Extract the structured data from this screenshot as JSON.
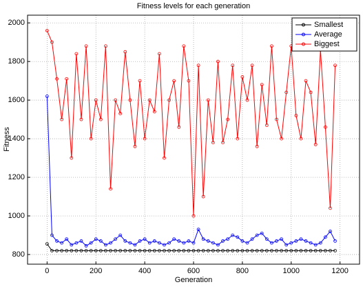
{
  "chart_data": {
    "type": "line",
    "title": "Fitness levels for each generation",
    "xlabel": "Generation",
    "ylabel": "Fitness",
    "x": [
      0,
      20,
      40,
      60,
      80,
      100,
      120,
      140,
      160,
      180,
      200,
      220,
      240,
      260,
      280,
      300,
      320,
      340,
      360,
      380,
      400,
      420,
      440,
      460,
      480,
      500,
      520,
      540,
      560,
      580,
      600,
      620,
      640,
      660,
      680,
      700,
      720,
      740,
      760,
      780,
      800,
      820,
      840,
      860,
      880,
      900,
      920,
      940,
      960,
      980,
      1000,
      1020,
      1040,
      1060,
      1080,
      1100,
      1120,
      1140,
      1160,
      1180
    ],
    "series": [
      {
        "name": "Smallest",
        "color": "#000000",
        "values": [
          855,
          820,
          820,
          820,
          820,
          820,
          820,
          820,
          820,
          820,
          820,
          820,
          820,
          820,
          820,
          820,
          820,
          820,
          820,
          820,
          820,
          820,
          820,
          820,
          820,
          820,
          820,
          820,
          820,
          820,
          820,
          820,
          820,
          820,
          820,
          820,
          820,
          820,
          820,
          820,
          820,
          820,
          820,
          820,
          820,
          820,
          820,
          820,
          820,
          820,
          820,
          820,
          820,
          820,
          820,
          820,
          820,
          820,
          820,
          820
        ]
      },
      {
        "name": "Average",
        "color": "#0000ff",
        "values": [
          1620,
          900,
          870,
          860,
          880,
          850,
          860,
          870,
          845,
          860,
          880,
          870,
          850,
          860,
          880,
          900,
          870,
          860,
          850,
          870,
          880,
          860,
          870,
          860,
          850,
          860,
          880,
          870,
          860,
          870,
          860,
          930,
          880,
          870,
          860,
          850,
          870,
          880,
          900,
          890,
          870,
          860,
          880,
          900,
          910,
          880,
          860,
          870,
          880,
          850,
          860,
          870,
          880,
          870,
          860,
          850,
          860,
          890,
          920,
          870
        ]
      },
      {
        "name": "Biggest",
        "color": "#ff0000",
        "values": [
          1960,
          1900,
          1710,
          1500,
          1710,
          1300,
          1840,
          1500,
          1880,
          1400,
          1600,
          1500,
          1880,
          1140,
          1600,
          1530,
          1850,
          1600,
          1360,
          1700,
          1400,
          1600,
          1540,
          1840,
          1300,
          1600,
          1700,
          1460,
          1880,
          1700,
          1000,
          1780,
          1100,
          1600,
          1380,
          1800,
          1380,
          1500,
          1780,
          1400,
          1720,
          1600,
          1780,
          1360,
          1680,
          1470,
          1880,
          1500,
          1400,
          1640,
          1880,
          1520,
          1400,
          1700,
          1640,
          1370,
          1860,
          1460,
          1040,
          1780
        ]
      }
    ],
    "xlim": [
      -80,
      1280
    ],
    "ylim": [
      750,
      2040
    ],
    "xticks": [
      0,
      200,
      400,
      600,
      800,
      1000,
      1200
    ],
    "yticks": [
      800,
      1000,
      1200,
      1400,
      1600,
      1800,
      2000
    ],
    "grid": true,
    "legend": "upper right"
  }
}
